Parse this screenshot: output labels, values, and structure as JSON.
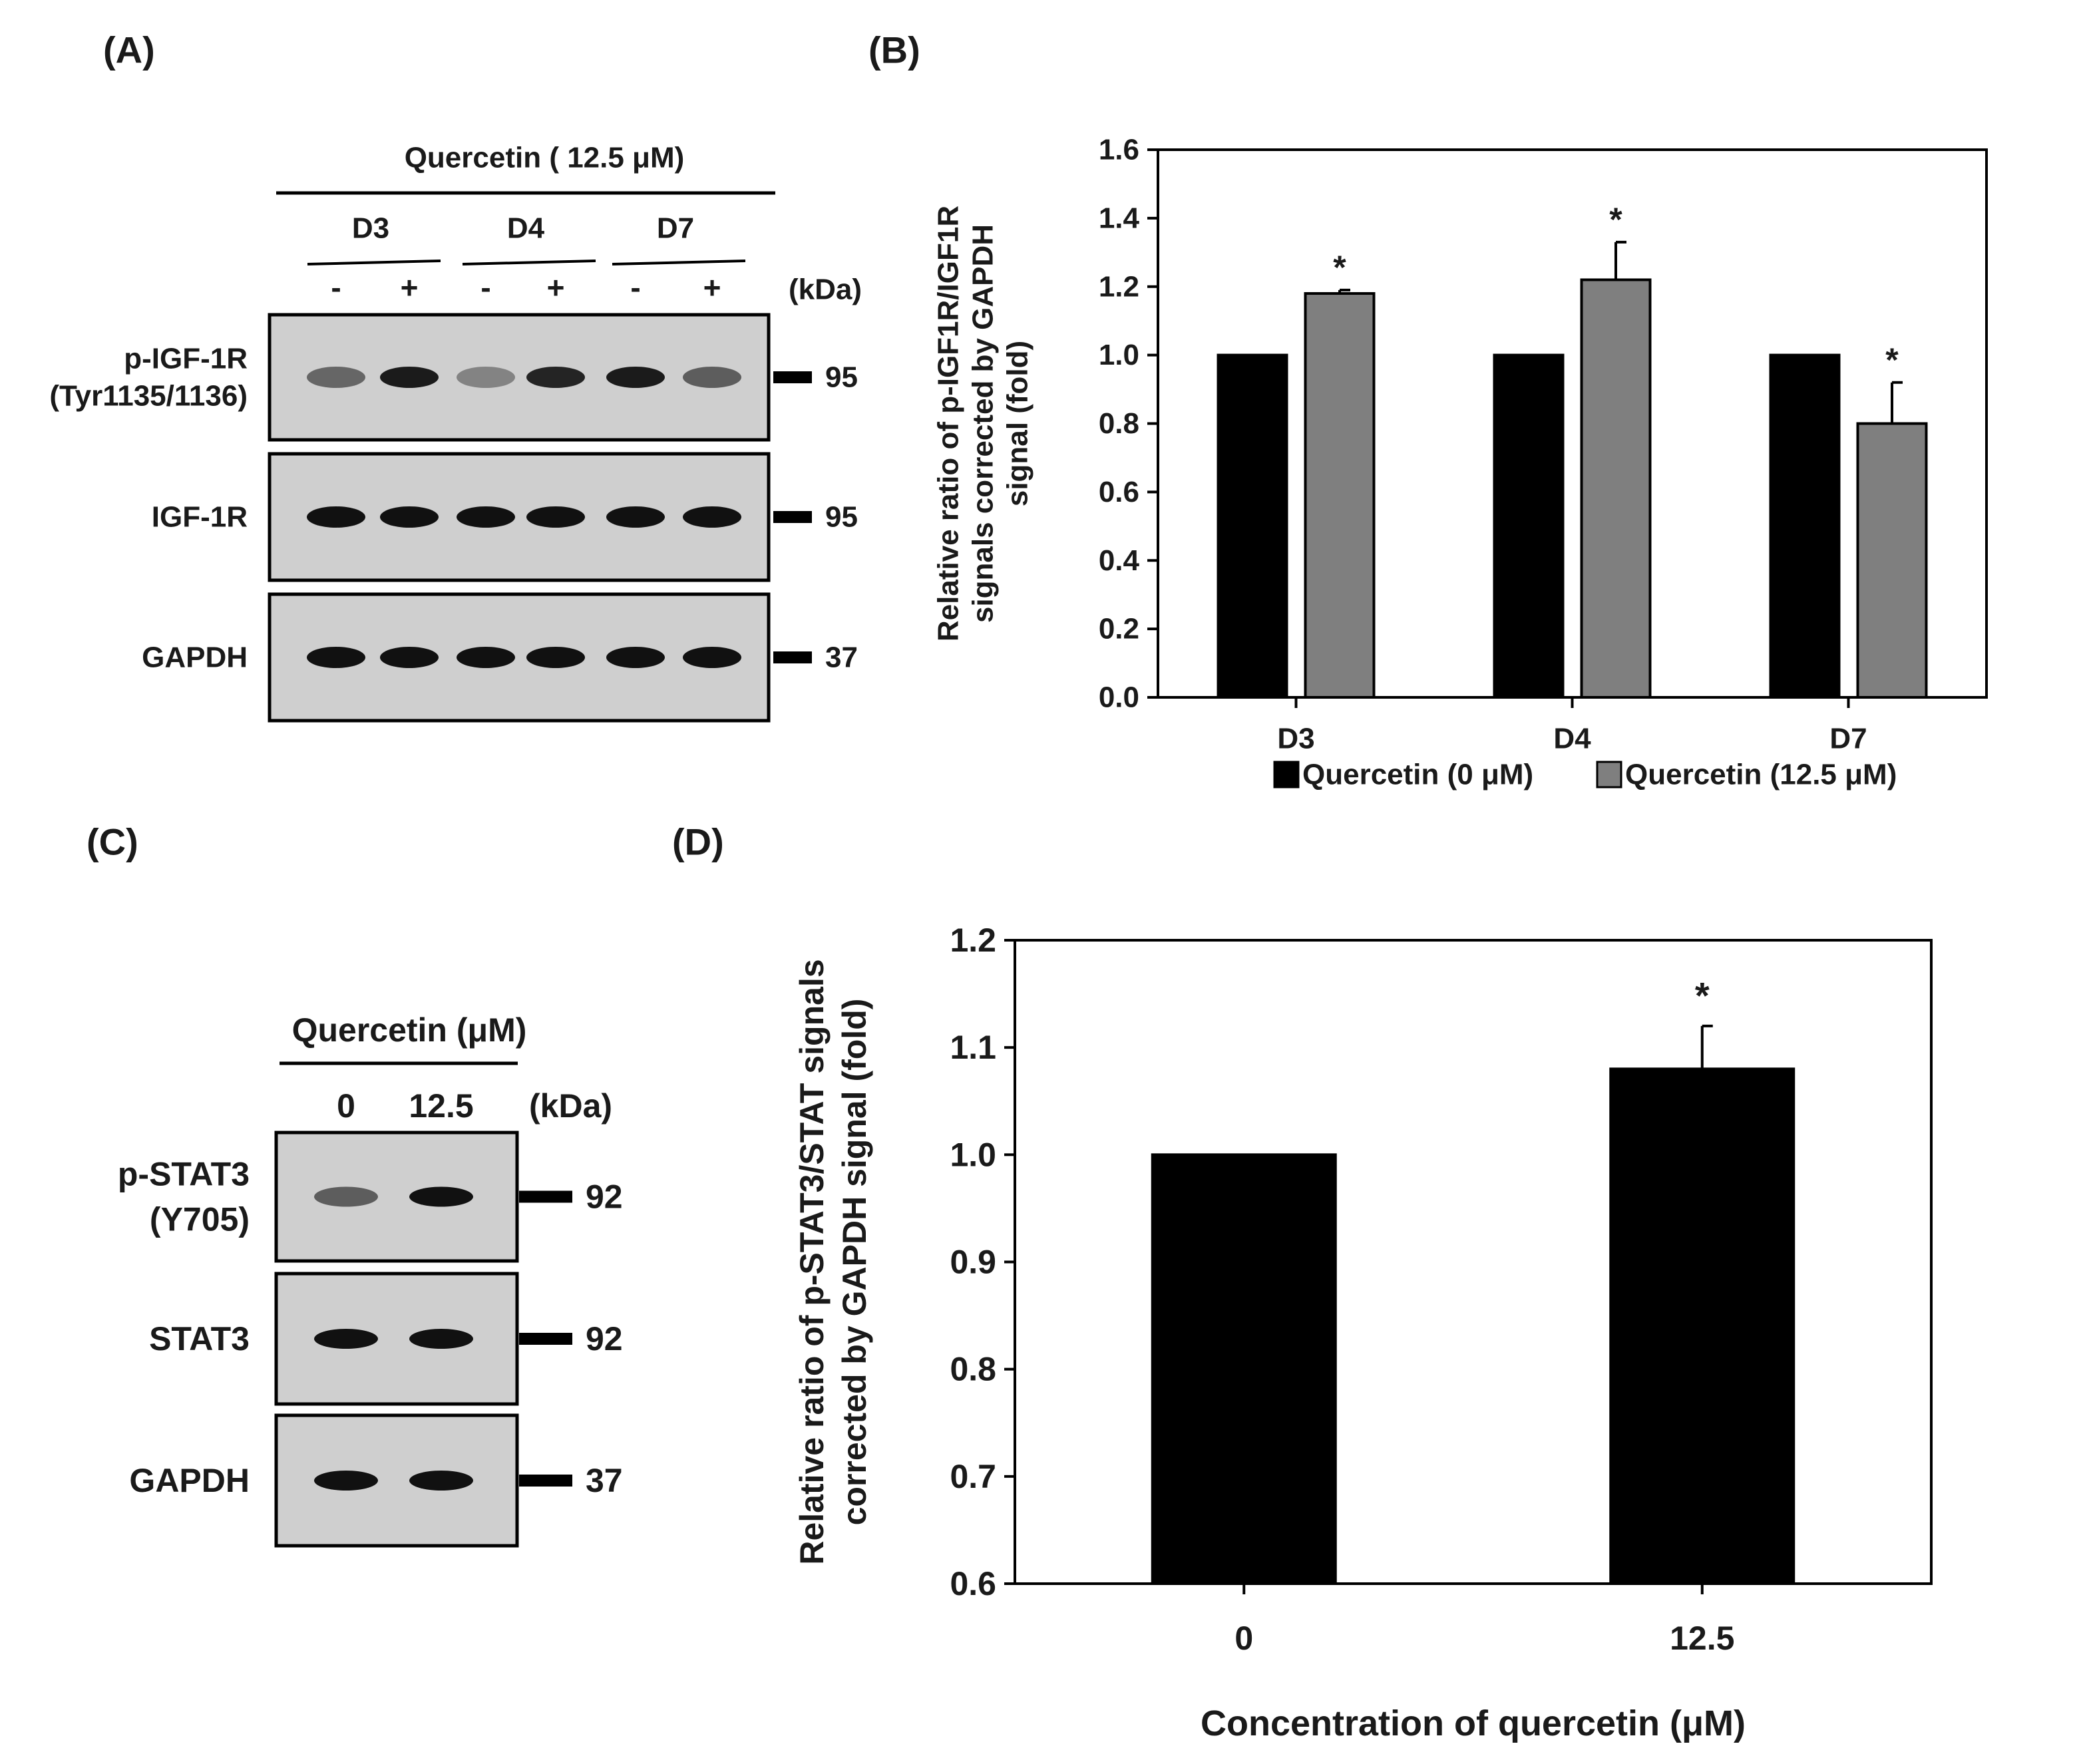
{
  "panels": {
    "a": {
      "letter": "(A)",
      "treatment": "Quercetin ( 12.5 μM)",
      "days": [
        "D3",
        "D4",
        "D7"
      ],
      "lane_signs": [
        "-",
        "+",
        "-",
        "+",
        "-",
        "+"
      ],
      "kda_label": "(kDa)",
      "blots": [
        {
          "name_lines": [
            "p-IGF-1R",
            "(Tyr1135/1136)"
          ],
          "kda": "95",
          "band_intensity": [
            0.55,
            0.95,
            0.4,
            0.9,
            0.95,
            0.6
          ]
        },
        {
          "name_lines": [
            "IGF-1R"
          ],
          "kda": "95",
          "band_intensity": [
            1,
            1,
            1,
            1,
            1,
            1
          ]
        },
        {
          "name_lines": [
            "GAPDH"
          ],
          "kda": "37",
          "band_intensity": [
            1,
            1,
            1,
            1,
            1,
            1
          ]
        }
      ]
    },
    "b": {
      "letter": "(B)"
    },
    "c": {
      "letter": "(C)",
      "treatment": "Quercetin (μM)",
      "lanes": [
        "0",
        "12.5"
      ],
      "kda_label": "(kDa)",
      "blots": [
        {
          "name_lines": [
            "p-STAT3",
            "(Y705)"
          ],
          "kda": "92",
          "band_intensity": [
            0.6,
            1
          ]
        },
        {
          "name_lines": [
            "STAT3"
          ],
          "kda": "92",
          "band_intensity": [
            1,
            1
          ]
        },
        {
          "name_lines": [
            "GAPDH"
          ],
          "kda": "37",
          "band_intensity": [
            1,
            1
          ]
        }
      ]
    },
    "d": {
      "letter": "(D)"
    }
  },
  "colors": {
    "control": "#000000",
    "treated": "#7f7f7f",
    "blot_bg": "#cfcfcf",
    "band": "#111111"
  },
  "chart_data": [
    {
      "id": "B",
      "type": "bar",
      "categories": [
        "D3",
        "D4",
        "D7"
      ],
      "series": [
        {
          "name": "Quercetin (0 μM)",
          "values": [
            1.0,
            1.0,
            1.0
          ],
          "errors": [
            0,
            0,
            0
          ],
          "significant": [
            false,
            false,
            false
          ]
        },
        {
          "name": "Quercetin (12.5 μM)",
          "values": [
            1.18,
            1.22,
            0.8
          ],
          "errors": [
            0.01,
            0.11,
            0.12
          ],
          "significant": [
            true,
            true,
            true
          ]
        }
      ],
      "ylabel_lines": [
        "Relative ratio of p-IGF1R/IGF1R",
        "signals corrected by GAPDH",
        "signal (fold)"
      ],
      "xlabel": "",
      "ylim": [
        0,
        1.6
      ],
      "yticks": [
        "0.0",
        "0.2",
        "0.4",
        "0.6",
        "0.8",
        "1.0",
        "1.2",
        "1.4",
        "1.6"
      ],
      "significance_marker": "*",
      "legend_position": "bottom"
    },
    {
      "id": "D",
      "type": "bar",
      "categories": [
        "0",
        "12.5"
      ],
      "series": [
        {
          "name": "Quercetin",
          "values": [
            1.0,
            1.08
          ],
          "errors": [
            0,
            0.04
          ],
          "significant": [
            false,
            true
          ]
        }
      ],
      "ylabel_lines": [
        "Relative ratio of p-STAT3/STAT signals",
        "corrected by GAPDH signal (fold)"
      ],
      "xlabel": "Concentration of quercetin (μM)",
      "ylim": [
        0.6,
        1.2
      ],
      "yticks": [
        "0.6",
        "0.7",
        "0.8",
        "0.9",
        "1.0",
        "1.1",
        "1.2"
      ],
      "significance_marker": "*"
    }
  ]
}
